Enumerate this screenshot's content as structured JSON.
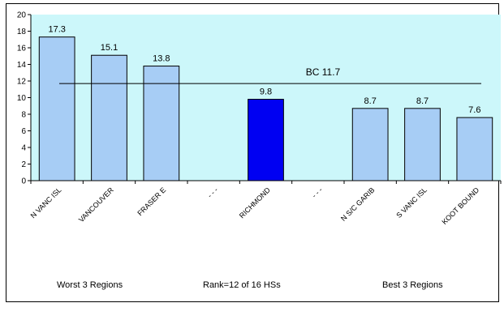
{
  "chart_data": {
    "type": "bar",
    "categories": [
      "N VANC ISL",
      "VANCOUVER",
      "FRASER E",
      "- - -",
      "RICHMOND",
      "- - -",
      "N S/C GARIB",
      "S VANC ISL",
      "KOOT BOUND"
    ],
    "values": [
      17.3,
      15.1,
      13.8,
      null,
      9.8,
      null,
      8.7,
      8.7,
      7.6
    ],
    "value_labels": [
      "17.3",
      "15.1",
      "13.8",
      "",
      "9.8",
      "",
      "8.7",
      "8.7",
      "7.6"
    ],
    "highlight": [
      false,
      false,
      false,
      false,
      true,
      false,
      false,
      false,
      false
    ],
    "ylim": [
      0,
      20
    ],
    "yticks": [
      "0",
      "2",
      "4",
      "6",
      "8",
      "10",
      "12",
      "14",
      "16",
      "18",
      "20"
    ],
    "reference_line": {
      "value": 11.7,
      "label": "BC 11.7"
    },
    "title": "",
    "xlabel": "",
    "ylabel": "",
    "grid": false,
    "colors": {
      "plot_background": "#ccf7fa",
      "bar": "#a7cdf5",
      "bar_highlight": "#0000f2",
      "bar_outline": "#000000"
    }
  },
  "footer": {
    "left": "Worst 3 Regions",
    "center": "Rank=12 of 16 HSs",
    "right": "Best 3 Regions"
  }
}
